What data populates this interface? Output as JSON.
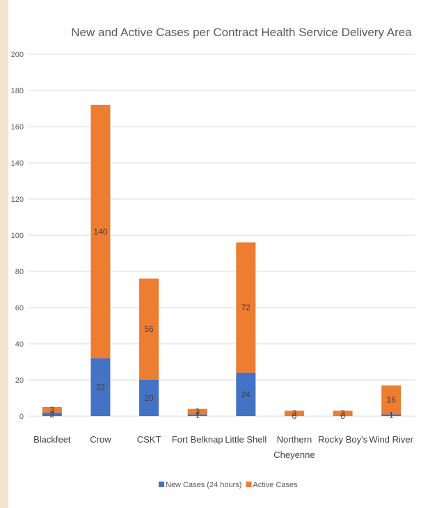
{
  "chart_data": {
    "type": "bar",
    "stacked": true,
    "title": "New and Active Cases per Contract Health Service Delivery Area",
    "xlabel": "",
    "ylabel": "",
    "ylim": [
      0,
      200
    ],
    "yticks": [
      0,
      20,
      40,
      60,
      80,
      100,
      120,
      140,
      160,
      180,
      200
    ],
    "grid": true,
    "legend_position": "bottom",
    "categories": [
      [
        "Blackfeet"
      ],
      [
        "Crow"
      ],
      [
        "CSKT"
      ],
      [
        "Fort Belknap"
      ],
      [
        "Little Shell"
      ],
      [
        "Northern",
        "Cheyenne"
      ],
      [
        "Rocky Boy's"
      ],
      [
        "Wind River"
      ]
    ],
    "series": [
      {
        "name": "New Cases (24 hours)",
        "color": "#4472c4",
        "values": [
          2,
          32,
          20,
          1,
          24,
          0,
          0,
          1
        ]
      },
      {
        "name": "Active Cases",
        "color": "#ed7d31",
        "values": [
          3,
          140,
          56,
          3,
          72,
          3,
          3,
          16
        ]
      }
    ]
  }
}
